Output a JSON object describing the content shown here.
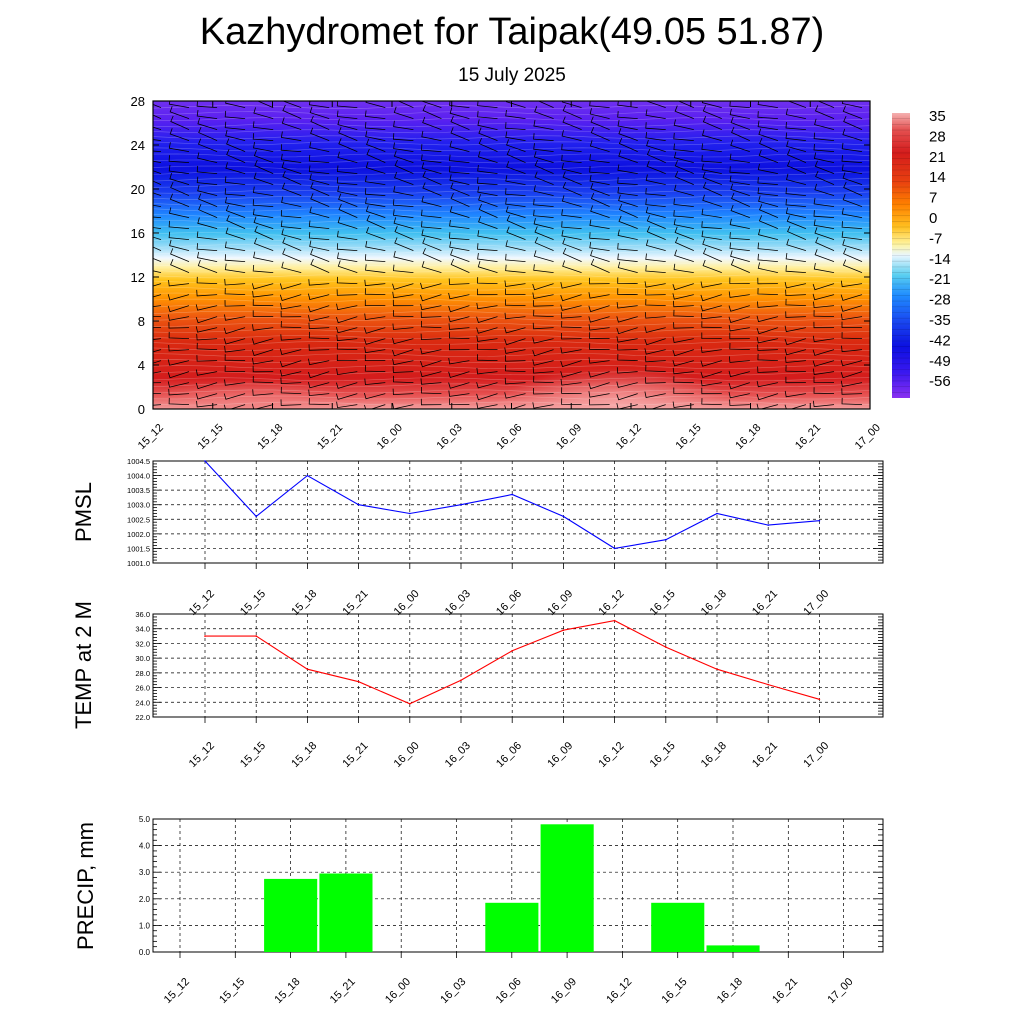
{
  "title": "Kazhydromet for Taipak(49.05 51.87)",
  "subtitle": "15 July 2025",
  "colors": {
    "pmsl_line": "#0000ff",
    "temp_line": "#ff0000",
    "precip_bar": "#00ff00"
  },
  "chart_data": [
    {
      "type": "heatmap",
      "name": "temperature-height-section",
      "x": [
        "15_12",
        "15_15",
        "15_18",
        "15_21",
        "16_00",
        "16_03",
        "16_06",
        "16_09",
        "16_12",
        "16_15",
        "16_18",
        "16_21",
        "17_00"
      ],
      "y_ticks": [
        0,
        4,
        8,
        12,
        16,
        20,
        24,
        28
      ],
      "ylim": [
        0,
        28
      ],
      "colorbar_labels": [
        "35",
        "28",
        "21",
        "14",
        "7",
        "0",
        "-7",
        "-14",
        "-21",
        "-28",
        "-35",
        "-42",
        "-49",
        "-56"
      ],
      "colorbar_colors": [
        "#f09a9a",
        "#e84040",
        "#d81818",
        "#e64a12",
        "#ff8a00",
        "#ffc020",
        "#fff6a0",
        "#e0f4ff",
        "#40c8f0",
        "#2090ff",
        "#2050f0",
        "#1010e8",
        "#4a10f0",
        "#8a30f0"
      ],
      "approx_profile": [
        {
          "level": 0,
          "value": 34
        },
        {
          "level": 3,
          "value": 26
        },
        {
          "level": 6,
          "value": 18
        },
        {
          "level": 9,
          "value": 10
        },
        {
          "level": 11,
          "value": 4
        },
        {
          "level": 13,
          "value": -8
        },
        {
          "level": 14,
          "value": -16
        },
        {
          "level": 16,
          "value": -30
        },
        {
          "level": 18,
          "value": -42
        },
        {
          "level": 20,
          "value": -52
        },
        {
          "level": 22,
          "value": -56
        },
        {
          "level": 24,
          "value": -54
        },
        {
          "level": 28,
          "value": -52
        }
      ],
      "grid": false
    },
    {
      "type": "line",
      "name": "pmsl",
      "ylabel": "PMSL",
      "x": [
        "15_12",
        "15_15",
        "15_18",
        "15_21",
        "16_00",
        "16_03",
        "16_06",
        "16_09",
        "16_12",
        "16_15",
        "16_18",
        "16_21",
        "17_00"
      ],
      "y_ticks": [
        "1001.0",
        "1001.5",
        "1002.0",
        "1002.5",
        "1003.0",
        "1003.5",
        "1004.0",
        "1004.5"
      ],
      "ylim": [
        1001.0,
        1004.5
      ],
      "series": [
        {
          "values": [
            1004.5,
            1002.6,
            1004.0,
            1003.0,
            1002.7,
            1003.0,
            1003.35,
            1002.6,
            1001.5,
            1001.8,
            1002.7,
            1002.3,
            1002.45
          ]
        }
      ],
      "grid": true
    },
    {
      "type": "line",
      "name": "temp2m",
      "ylabel": "TEMP at 2 M",
      "x": [
        "15_12",
        "15_15",
        "15_18",
        "15_21",
        "16_00",
        "16_03",
        "16_06",
        "16_09",
        "16_12",
        "16_15",
        "16_18",
        "16_21",
        "17_00"
      ],
      "y_ticks": [
        "22.0",
        "24.0",
        "26.0",
        "28.0",
        "30.0",
        "32.0",
        "34.0",
        "36.0"
      ],
      "ylim": [
        22.0,
        36.0
      ],
      "series": [
        {
          "values": [
            33.0,
            33.0,
            28.5,
            26.8,
            23.8,
            27.0,
            31.0,
            33.8,
            35.1,
            31.5,
            28.5,
            26.4,
            24.4
          ]
        }
      ],
      "grid": true
    },
    {
      "type": "bar",
      "name": "precip",
      "ylabel": "PRECIP, mm",
      "x": [
        "15_12",
        "15_15",
        "15_18",
        "15_21",
        "16_00",
        "16_03",
        "16_06",
        "16_09",
        "16_12",
        "16_15",
        "16_18",
        "16_21",
        "17_00"
      ],
      "y_ticks": [
        "0.0",
        "1.0",
        "2.0",
        "3.0",
        "4.0",
        "5.0"
      ],
      "ylim": [
        0.0,
        5.0
      ],
      "values": [
        0,
        0,
        2.75,
        2.95,
        0,
        0,
        1.85,
        4.8,
        0,
        1.85,
        0.25,
        0,
        0
      ],
      "grid": true
    }
  ]
}
